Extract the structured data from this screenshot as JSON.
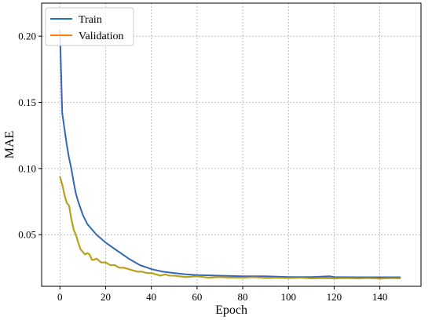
{
  "chart_data": {
    "type": "line",
    "xlabel": "Epoch",
    "ylabel": "MAE",
    "xlim": [
      -8,
      158
    ],
    "ylim": [
      0.011,
      0.225
    ],
    "xticks": [
      0,
      20,
      40,
      60,
      80,
      100,
      120,
      140
    ],
    "yticks": [
      0.05,
      0.1,
      0.15,
      0.2
    ],
    "ytick_labels": [
      "0.05",
      "0.10",
      "0.15",
      "0.20"
    ],
    "grid": true,
    "legend_position": "top-left",
    "overlap_color": "#b5a21b",
    "series": [
      {
        "name": "Train",
        "color": "#1f77b4",
        "points": [
          [
            0,
            0.205
          ],
          [
            1,
            0.142
          ],
          [
            2,
            0.13
          ],
          [
            3,
            0.118
          ],
          [
            4,
            0.108
          ],
          [
            5,
            0.1
          ],
          [
            6,
            0.09
          ],
          [
            7,
            0.081
          ],
          [
            8,
            0.075
          ],
          [
            9,
            0.07
          ],
          [
            10,
            0.065
          ],
          [
            12,
            0.058
          ],
          [
            14,
            0.054
          ],
          [
            16,
            0.05
          ],
          [
            18,
            0.047
          ],
          [
            20,
            0.044
          ],
          [
            25,
            0.038
          ],
          [
            30,
            0.032
          ],
          [
            35,
            0.027
          ],
          [
            40,
            0.024
          ],
          [
            45,
            0.022
          ],
          [
            50,
            0.021
          ],
          [
            55,
            0.02
          ],
          [
            60,
            0.0195
          ],
          [
            70,
            0.019
          ],
          [
            80,
            0.0185
          ],
          [
            90,
            0.0185
          ],
          [
            100,
            0.018
          ],
          [
            110,
            0.018
          ],
          [
            118,
            0.0185
          ],
          [
            120,
            0.018
          ],
          [
            130,
            0.0178
          ],
          [
            140,
            0.0178
          ],
          [
            149,
            0.0178
          ]
        ]
      },
      {
        "name": "Validation",
        "color": "#ff7f0e",
        "points": [
          [
            0,
            0.094
          ],
          [
            1,
            0.088
          ],
          [
            2,
            0.08
          ],
          [
            3,
            0.074
          ],
          [
            4,
            0.072
          ],
          [
            5,
            0.062
          ],
          [
            6,
            0.054
          ],
          [
            7,
            0.05
          ],
          [
            8,
            0.044
          ],
          [
            9,
            0.039
          ],
          [
            10,
            0.037
          ],
          [
            11,
            0.035
          ],
          [
            12,
            0.036
          ],
          [
            13,
            0.035
          ],
          [
            14,
            0.031
          ],
          [
            15,
            0.031
          ],
          [
            16,
            0.032
          ],
          [
            18,
            0.029
          ],
          [
            20,
            0.029
          ],
          [
            22,
            0.027
          ],
          [
            24,
            0.027
          ],
          [
            26,
            0.025
          ],
          [
            28,
            0.025
          ],
          [
            30,
            0.024
          ],
          [
            32,
            0.023
          ],
          [
            34,
            0.022
          ],
          [
            36,
            0.022
          ],
          [
            38,
            0.021
          ],
          [
            40,
            0.021
          ],
          [
            42,
            0.02
          ],
          [
            44,
            0.019
          ],
          [
            46,
            0.02
          ],
          [
            48,
            0.019
          ],
          [
            50,
            0.019
          ],
          [
            55,
            0.018
          ],
          [
            60,
            0.0185
          ],
          [
            65,
            0.0175
          ],
          [
            70,
            0.018
          ],
          [
            75,
            0.0175
          ],
          [
            80,
            0.0175
          ],
          [
            85,
            0.018
          ],
          [
            90,
            0.0172
          ],
          [
            95,
            0.0175
          ],
          [
            100,
            0.0172
          ],
          [
            105,
            0.0175
          ],
          [
            110,
            0.017
          ],
          [
            115,
            0.0172
          ],
          [
            120,
            0.017
          ],
          [
            125,
            0.0172
          ],
          [
            130,
            0.017
          ],
          [
            135,
            0.0172
          ],
          [
            140,
            0.0168
          ],
          [
            145,
            0.0172
          ],
          [
            149,
            0.017
          ]
        ]
      }
    ]
  }
}
